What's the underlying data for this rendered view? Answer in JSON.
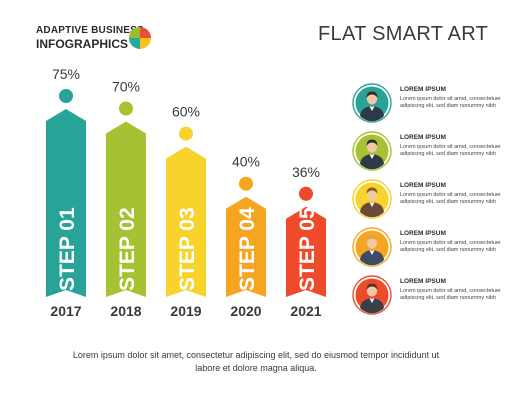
{
  "brand": {
    "line1": "ADAPTIVE BUSINESS",
    "line2": "INFOGRAPHICS",
    "logo_colors": [
      "#e94e3d",
      "#f5c518",
      "#2aa89a",
      "#9dbb2e"
    ]
  },
  "page_title": "FLAT SMART ART",
  "chart_data": {
    "type": "bar",
    "categories": [
      "2017",
      "2018",
      "2019",
      "2020",
      "2021"
    ],
    "values": [
      75,
      70,
      60,
      40,
      36
    ],
    "value_labels": [
      "75%",
      "70%",
      "60%",
      "40%",
      "36%"
    ],
    "step_labels": [
      "STEP 01",
      "STEP 02",
      "STEP 03",
      "STEP 04",
      "STEP 05"
    ],
    "colors": [
      "#27a397",
      "#a4c232",
      "#f7d32b",
      "#f7a521",
      "#ef4b2b"
    ],
    "ylim": [
      0,
      100
    ],
    "grid": false
  },
  "legend": {
    "items": [
      {
        "title": "LOREM IPSUM",
        "text": "Lorem ipsum dolor sit amet, consectetuer adipiscing elit, sed diam nonummy nibh",
        "icon": "businesswoman-icon",
        "color": "#27a397"
      },
      {
        "title": "LOREM IPSUM",
        "text": "Lorem ipsum dolor sit amet, consectetuer adipiscing elit, sed diam nonummy nibh",
        "icon": "businessman-icon",
        "color": "#a4c232"
      },
      {
        "title": "LOREM IPSUM",
        "text": "Lorem ipsum dolor sit amet, consectetuer adipiscing elit, sed diam nonummy nibh",
        "icon": "woman-with-tablet-icon",
        "color": "#f7d32b"
      },
      {
        "title": "LOREM IPSUM",
        "text": "Lorem ipsum dolor sit amet, consectetuer adipiscing elit, sed diam nonummy nibh",
        "icon": "woman-with-glasses-icon",
        "color": "#f7a521"
      },
      {
        "title": "LOREM IPSUM",
        "text": "Lorem ipsum dolor sit amet, consectetuer adipiscing elit, sed diam nonummy nibh",
        "icon": "businesswoman-pointing-icon",
        "color": "#ef4b2b"
      }
    ]
  },
  "footer": {
    "text": "Lorem ipsum dolor sit amet, consectetur adipiscing elit, sed do eiusmod tempor incididunt ut labore et dolore magna aliqua."
  }
}
